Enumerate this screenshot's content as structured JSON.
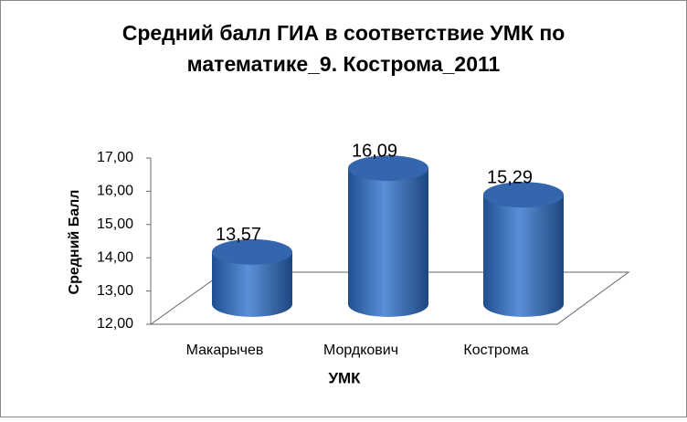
{
  "chart_data": {
    "type": "bar3d",
    "title": [
      "Средний балл ГИА в соответствие УМК по",
      "математике_9. Кострома_2011"
    ],
    "x_label": "УМК",
    "y_label": "Средний Балл",
    "categories": [
      "Макарычев",
      "Мордкович",
      "Кострома"
    ],
    "values": [
      13.57,
      16.09,
      15.29
    ],
    "value_labels": [
      "13,57",
      "16,09",
      "15,29"
    ],
    "color": "#3a6db5",
    "ylim": [
      12,
      17
    ],
    "yticks": [
      {
        "value": 12,
        "label": "12,00"
      },
      {
        "value": 13,
        "label": "13,00"
      },
      {
        "value": 14,
        "label": "14,00"
      },
      {
        "value": 15,
        "label": "15,00"
      },
      {
        "value": 16,
        "label": "16,00"
      },
      {
        "value": 17,
        "label": "17,00"
      }
    ]
  }
}
